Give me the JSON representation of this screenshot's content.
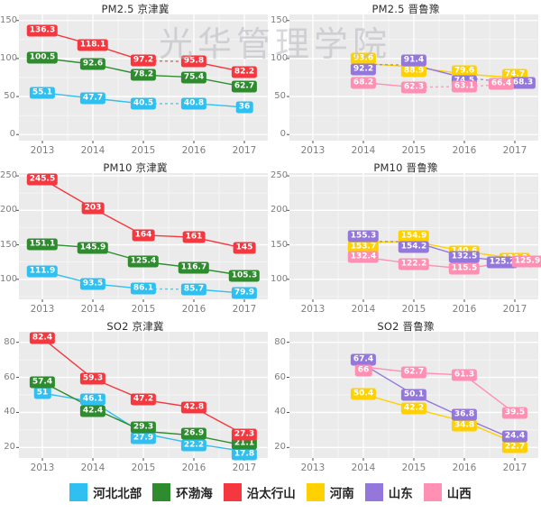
{
  "watermark": {
    "text": "光华管理学院"
  },
  "legend": [
    {
      "label": "河北北部",
      "color": "#2FBFF0"
    },
    {
      "label": "环渤海",
      "color": "#2E8B2E"
    },
    {
      "label": "沿太行山",
      "color": "#F5383F"
    },
    {
      "label": "河南",
      "color": "#FFD100"
    },
    {
      "label": "山东",
      "color": "#9377DB"
    },
    {
      "label": "山西",
      "color": "#FF8FB3"
    }
  ],
  "chart_data": [
    {
      "type": "line",
      "title": "PM2.5 京津冀",
      "x": [
        "2013",
        "2014",
        "2015",
        "2016",
        "2017"
      ],
      "y_ticks": [
        0,
        50,
        100,
        150
      ],
      "ylim": [
        -8,
        158
      ],
      "grid": true,
      "legend_position": "bottom-shared",
      "series": [
        {
          "name": "河北北部",
          "color": "#2FBFF0",
          "values": [
            55.1,
            47.7,
            40.5,
            40.8,
            36
          ],
          "dashed_from": [
            2
          ],
          "label_offsets": {}
        },
        {
          "name": "环渤海",
          "color": "#2E8B2E",
          "values": [
            100.5,
            92.6,
            78.2,
            75.4,
            62.7
          ],
          "dashed_from": [],
          "label_offsets": {}
        },
        {
          "name": "沿太行山",
          "color": "#F5383F",
          "values": [
            136.3,
            118.1,
            97.2,
            95.8,
            82.2
          ],
          "dashed_from": [
            2
          ],
          "label_offsets": {}
        }
      ]
    },
    {
      "type": "line",
      "title": "PM2.5 晋鲁豫",
      "x": [
        "2013",
        "2014",
        "2015",
        "2016",
        "2017"
      ],
      "y_ticks": [
        0,
        50,
        100,
        150
      ],
      "ylim": [
        -8,
        158
      ],
      "grid": true,
      "legend_position": "bottom-shared",
      "series": [
        {
          "name": "河南",
          "color": "#FFD100",
          "values": [
            null,
            93.6,
            88.9,
            79.6,
            74.7
          ],
          "dashed_from": [],
          "label_offsets": {
            "1": {
              "dy": -5
            },
            "2": {
              "dy": 5
            },
            "3": {
              "dy": -3
            },
            "4": {
              "dy": -3
            }
          }
        },
        {
          "name": "山东",
          "color": "#9377DB",
          "values": [
            null,
            92.2,
            91.4,
            74.5,
            68.3
          ],
          "dashed_from": [
            1,
            3
          ],
          "label_offsets": {
            "1": {
              "dy": 6
            },
            "2": {
              "dy": -5
            },
            "3": {
              "dy": 4
            },
            "4": {
              "dx": 9
            }
          }
        },
        {
          "name": "山西",
          "color": "#FF8FB3",
          "values": [
            null,
            68.2,
            62.3,
            63.1,
            66.4
          ],
          "dashed_from": [
            2,
            3
          ],
          "label_offsets": {
            "4": {
              "dx": -15
            }
          }
        }
      ]
    },
    {
      "type": "line",
      "title": "PM10 京津冀",
      "x": [
        "2013",
        "2014",
        "2015",
        "2016",
        "2017"
      ],
      "y_ticks": [
        100,
        150,
        200,
        250
      ],
      "ylim": [
        71,
        254
      ],
      "grid": true,
      "legend_position": "bottom-shared",
      "series": [
        {
          "name": "河北北部",
          "color": "#2FBFF0",
          "values": [
            111.9,
            93.5,
            86.1,
            85.7,
            79.9
          ],
          "dashed_from": [
            2
          ],
          "label_offsets": {}
        },
        {
          "name": "环渤海",
          "color": "#2E8B2E",
          "values": [
            151.1,
            145.9,
            125.4,
            116.7,
            105.3
          ],
          "dashed_from": [],
          "label_offsets": {}
        },
        {
          "name": "沿太行山",
          "color": "#F5383F",
          "values": [
            245.5,
            203,
            164,
            161,
            145
          ],
          "dashed_from": [],
          "label_offsets": {}
        }
      ]
    },
    {
      "type": "line",
      "title": "PM10 晋鲁豫",
      "x": [
        "2013",
        "2014",
        "2015",
        "2016",
        "2017"
      ],
      "y_ticks": [
        100,
        150,
        200,
        250
      ],
      "ylim": [
        71,
        254
      ],
      "grid": true,
      "legend_position": "bottom-shared",
      "series": [
        {
          "name": "河南",
          "color": "#FFD100",
          "values": [
            null,
            153.7,
            154.9,
            140.6,
            130.2
          ],
          "dashed_from": [],
          "label_offsets": {
            "1": {
              "dy": 5
            },
            "2": {
              "dy": -6
            }
          }
        },
        {
          "name": "山东",
          "color": "#9377DB",
          "values": [
            null,
            155.3,
            154.2,
            132.5,
            125.2
          ],
          "dashed_from": [
            1
          ],
          "label_offsets": {
            "1": {
              "dy": -6
            },
            "2": {
              "dy": 6
            },
            "4": {
              "dx": -14
            }
          }
        },
        {
          "name": "山西",
          "color": "#FF8FB3",
          "values": [
            null,
            132.4,
            122.2,
            115.5,
            125.9
          ],
          "dashed_from": [],
          "label_offsets": {
            "4": {
              "dx": 14
            }
          }
        }
      ]
    },
    {
      "type": "line",
      "title": "SO2 京津冀",
      "x": [
        "2013",
        "2014",
        "2015",
        "2016",
        "2017"
      ],
      "y_ticks": [
        20,
        40,
        60,
        80
      ],
      "ylim": [
        14,
        86
      ],
      "grid": true,
      "legend_position": "bottom-shared",
      "series": [
        {
          "name": "河北北部",
          "color": "#2FBFF0",
          "values": [
            51,
            46.1,
            27.9,
            22.2,
            17.8
          ],
          "dashed_from": [],
          "label_offsets": {
            "1": {
              "dy": -3
            },
            "2": {
              "dy": 5
            },
            "3": {
              "dy": 2
            },
            "4": {
              "dy": 3
            }
          }
        },
        {
          "name": "环渤海",
          "color": "#2E8B2E",
          "values": [
            57.4,
            42.4,
            29.3,
            26.9,
            21.1
          ],
          "dashed_from": [],
          "label_offsets": {
            "1": {
              "dy": 3
            },
            "2": {
              "dy": -4
            },
            "3": {
              "dy": -2
            },
            "4": {
              "dy": -2
            }
          }
        },
        {
          "name": "沿太行山",
          "color": "#F5383F",
          "values": [
            82.4,
            59.3,
            47.2,
            42.8,
            27.3
          ],
          "dashed_from": [],
          "label_offsets": {}
        }
      ]
    },
    {
      "type": "line",
      "title": "SO2 晋鲁豫",
      "x": [
        "2013",
        "2014",
        "2015",
        "2016",
        "2017"
      ],
      "y_ticks": [
        20,
        40,
        60,
        80
      ],
      "ylim": [
        14,
        86
      ],
      "grid": true,
      "legend_position": "bottom-shared",
      "series": [
        {
          "name": "河南",
          "color": "#FFD100",
          "values": [
            null,
            50.4,
            42.2,
            34.8,
            22.7
          ],
          "dashed_from": [],
          "label_offsets": {
            "3": {
              "dy": 4
            },
            "4": {
              "dy": 5
            }
          }
        },
        {
          "name": "山东",
          "color": "#9377DB",
          "values": [
            null,
            67.4,
            50.1,
            36.8,
            24.4
          ],
          "dashed_from": [],
          "label_offsets": {
            "1": {
              "dy": -5
            },
            "3": {
              "dy": -4
            },
            "4": {
              "dy": -4
            }
          }
        },
        {
          "name": "山西",
          "color": "#FF8FB3",
          "values": [
            null,
            66,
            62.7,
            61.3,
            39.5
          ],
          "dashed_from": [],
          "label_offsets": {
            "1": {
              "dy": 4
            }
          }
        }
      ]
    }
  ]
}
